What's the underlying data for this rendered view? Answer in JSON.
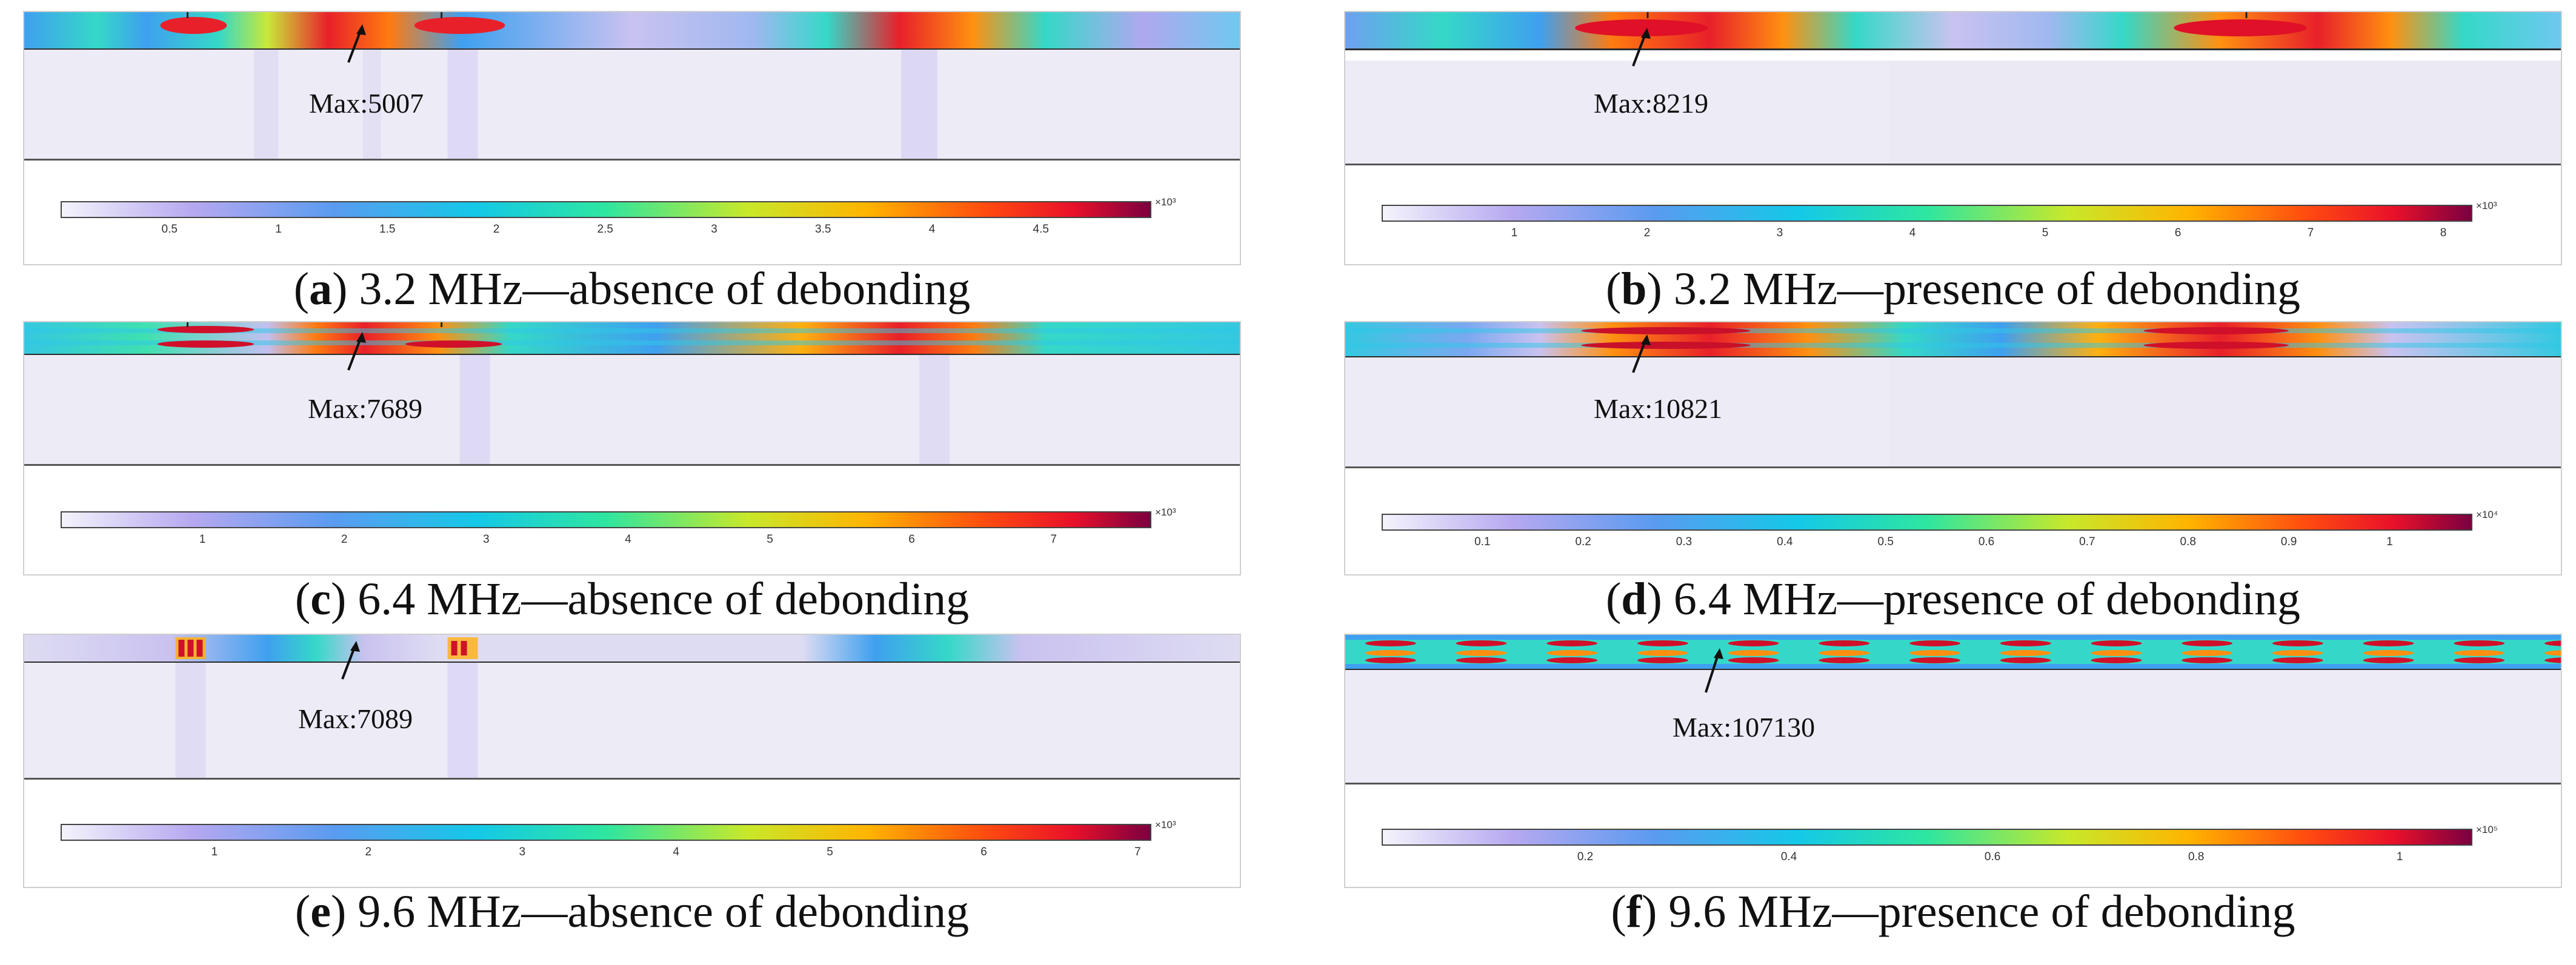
{
  "panels": [
    {
      "letter": "a",
      "caption_text": "3.2 MHz—absence of debonding",
      "max_label": "Max:5007",
      "multiplier": "×10³",
      "ticks": [
        "0.5",
        "1",
        "1.5",
        "2",
        "2.5",
        "3",
        "3.5",
        "4",
        "4.5"
      ],
      "tick_values": [
        0.5,
        1,
        1.5,
        2,
        2.5,
        3,
        3.5,
        4,
        4.5
      ],
      "range": [
        0,
        5007
      ]
    },
    {
      "letter": "b",
      "caption_text": "3.2 MHz—presence of debonding",
      "max_label": "Max:8219",
      "multiplier": "×10³",
      "ticks": [
        "1",
        "2",
        "3",
        "4",
        "5",
        "6",
        "7",
        "8"
      ],
      "tick_values": [
        1,
        2,
        3,
        4,
        5,
        6,
        7,
        8
      ],
      "range": [
        0,
        8219
      ]
    },
    {
      "letter": "c",
      "caption_text": "6.4 MHz—absence of debonding",
      "max_label": "Max:7689",
      "multiplier": "×10³",
      "ticks": [
        "1",
        "2",
        "3",
        "4",
        "5",
        "6",
        "7"
      ],
      "tick_values": [
        1,
        2,
        3,
        4,
        5,
        6,
        7
      ],
      "range": [
        0,
        7689
      ]
    },
    {
      "letter": "d",
      "caption_text": "6.4 MHz—presence of debonding",
      "max_label": "Max:10821",
      "multiplier": "×10⁴",
      "ticks": [
        "0.1",
        "0.2",
        "0.3",
        "0.4",
        "0.5",
        "0.6",
        "0.7",
        "0.8",
        "0.9",
        "1"
      ],
      "tick_values": [
        0.1,
        0.2,
        0.3,
        0.4,
        0.5,
        0.6,
        0.7,
        0.8,
        0.9,
        1
      ],
      "range": [
        0,
        10821
      ]
    },
    {
      "letter": "e",
      "caption_text": "9.6 MHz—absence of debonding",
      "max_label": "Max:7089",
      "multiplier": "×10³",
      "ticks": [
        "1",
        "2",
        "3",
        "4",
        "5",
        "6",
        "7"
      ],
      "tick_values": [
        1,
        2,
        3,
        4,
        5,
        6,
        7
      ],
      "range": [
        0,
        7089
      ]
    },
    {
      "letter": "f",
      "caption_text": "9.6 MHz—presence of debonding",
      "max_label": "Max:107130",
      "multiplier": "×10⁵",
      "ticks": [
        "0.2",
        "0.4",
        "0.6",
        "0.8",
        "1"
      ],
      "tick_values": [
        0.2,
        0.4,
        0.6,
        0.8,
        1
      ],
      "range": [
        0,
        107130
      ]
    }
  ],
  "colors": {
    "hot": "#e8102a",
    "cold": "#8f8fe8",
    "substrate": "#ecebf6"
  }
}
